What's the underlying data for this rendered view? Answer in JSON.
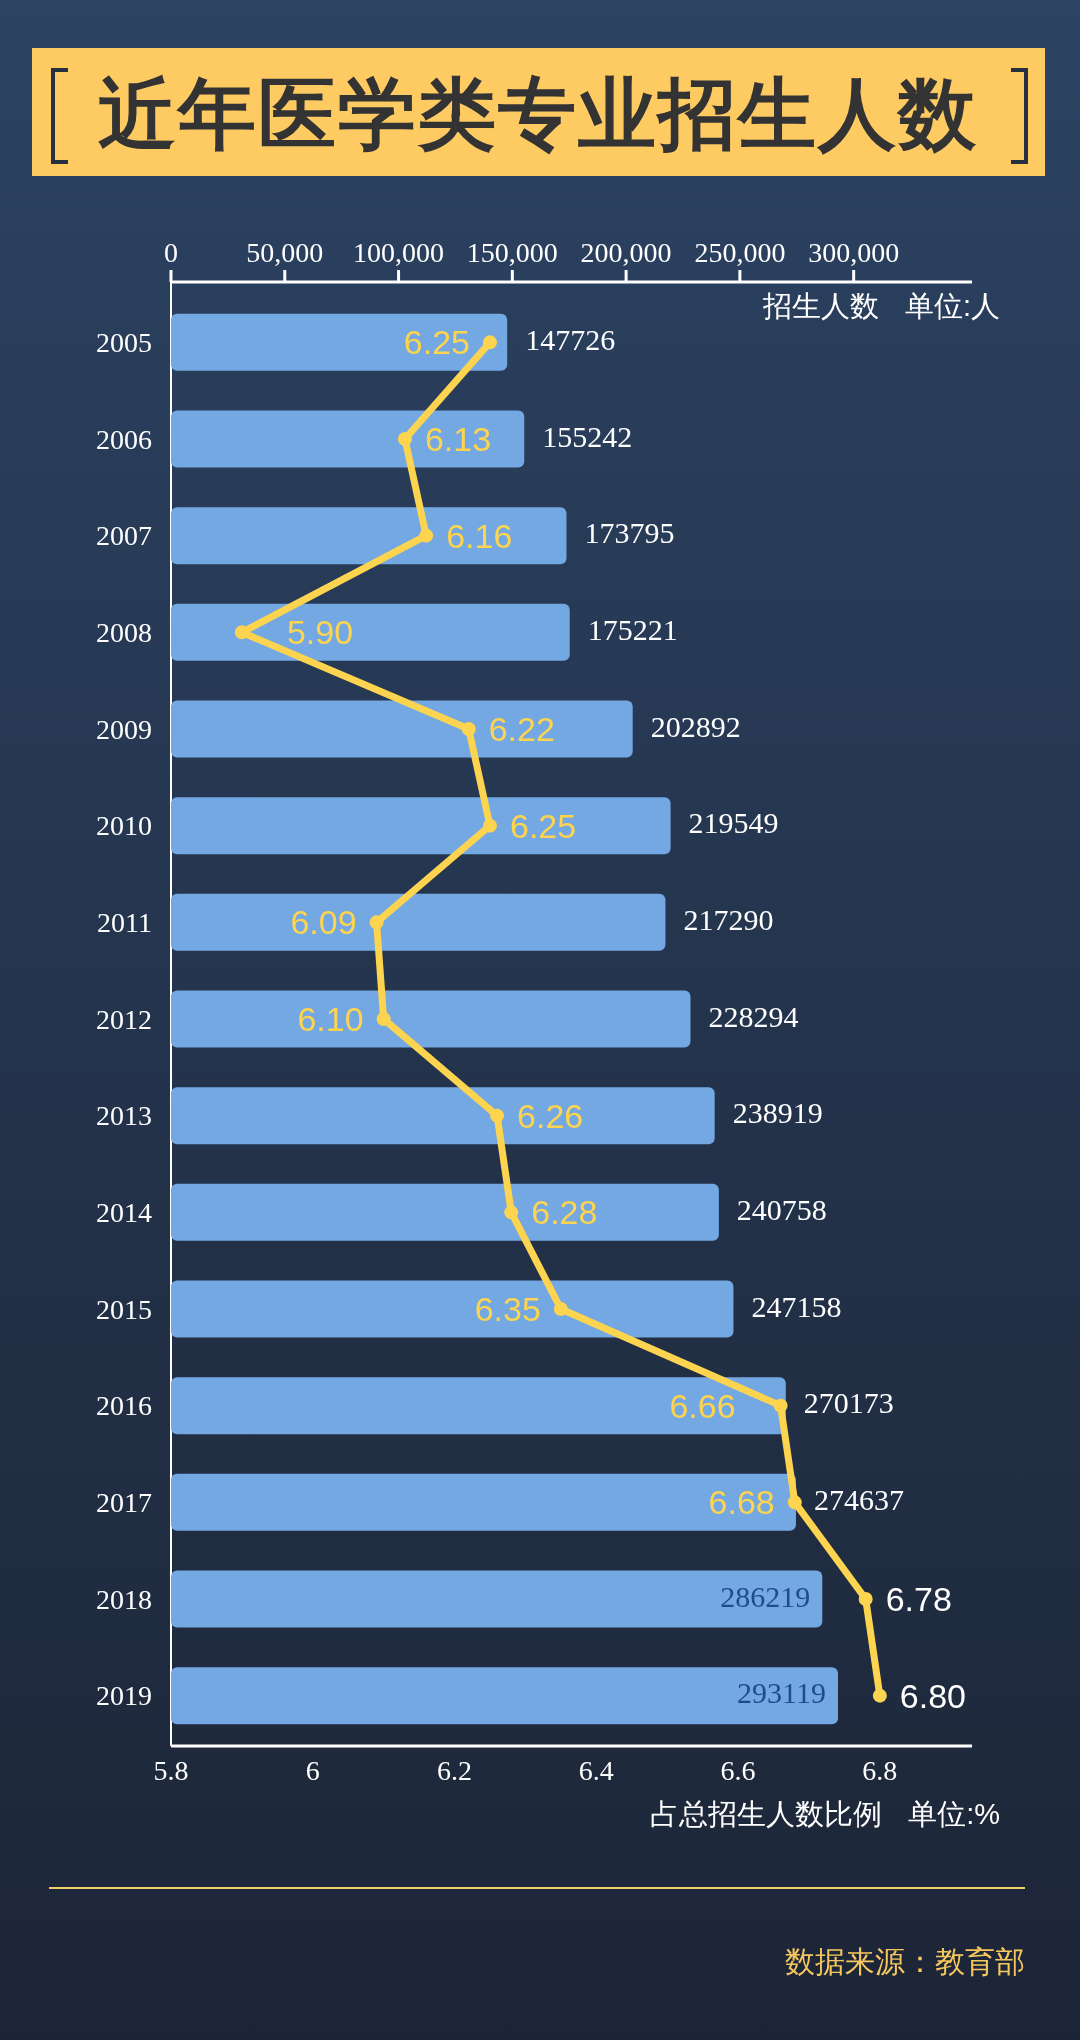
{
  "chart_data": {
    "type": "bar",
    "orientation": "horizontal",
    "title": "近年医学类专业招生人数",
    "categories": [
      "2005",
      "2006",
      "2007",
      "2008",
      "2009",
      "2010",
      "2011",
      "2012",
      "2013",
      "2014",
      "2015",
      "2016",
      "2017",
      "2018",
      "2019"
    ],
    "xlabel": "占总招生人数比例 单位:%",
    "x2label": "招生人数 单位:人",
    "xlim": [
      5.8,
      6.93
    ],
    "xticks": [
      5.8,
      6,
      6.2,
      6.4,
      6.6,
      6.8
    ],
    "x2lim": [
      0,
      352000
    ],
    "x2ticks": [
      0,
      {
        "value": 50000,
        "label": "50,000"
      },
      {
        "value": 100000,
        "label": "100,000"
      },
      {
        "value": 150000,
        "label": "150,000"
      },
      {
        "value": 200000,
        "label": "200,000"
      },
      {
        "value": 250000,
        "label": "250,000"
      },
      {
        "value": 300000,
        "label": "300,000"
      }
    ],
    "series": [
      {
        "axis": "x2",
        "color": "#73a8e2",
        "values": [
          147726,
          155242,
          173795,
          175221,
          202892,
          219549,
          217290,
          228294,
          238919,
          240758,
          247158,
          270173,
          274637,
          286219,
          293119
        ]
      },
      {
        "type": "line",
        "color": "#fdd44f",
        "values": [
          6.25,
          6.13,
          6.16,
          5.9,
          6.22,
          6.25,
          6.09,
          6.1,
          6.26,
          6.28,
          6.35,
          6.66,
          6.68,
          6.78,
          6.8
        ],
        "value_labels": [
          "6.25",
          "6.13",
          "6.16",
          "5.90",
          "6.22",
          "6.25",
          "6.09",
          "6.10",
          "6.26",
          "6.28",
          "6.35",
          "6.66",
          "6.68",
          "6.78",
          "6.80"
        ]
      }
    ],
    "data_labels": true,
    "marker": "circle",
    "line_style": "solid",
    "annotations": [
      "数据来源：教育部"
    ]
  }
}
